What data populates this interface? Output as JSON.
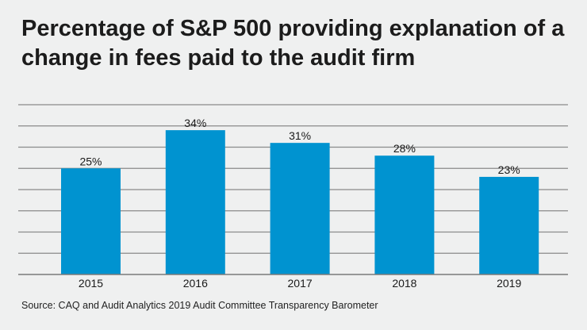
{
  "chart_data": {
    "type": "bar",
    "title": "Percentage of S&P 500 providing explanation of a change in fees paid to the audit firm",
    "categories": [
      "2015",
      "2016",
      "2017",
      "2018",
      "2019"
    ],
    "values": [
      25,
      34,
      31,
      28,
      23
    ],
    "data_labels": [
      "25%",
      "34%",
      "31%",
      "28%",
      "23%"
    ],
    "xlabel": "",
    "ylabel": "",
    "ylim": [
      0,
      40
    ],
    "grid_step": 5,
    "grid": true,
    "y_tick_labels_shown": false,
    "bar_color": "#0093d0",
    "background": "#eff0f0",
    "source": "Source: CAQ and Audit Analytics 2019 Audit Committee Transparency Barometer"
  }
}
